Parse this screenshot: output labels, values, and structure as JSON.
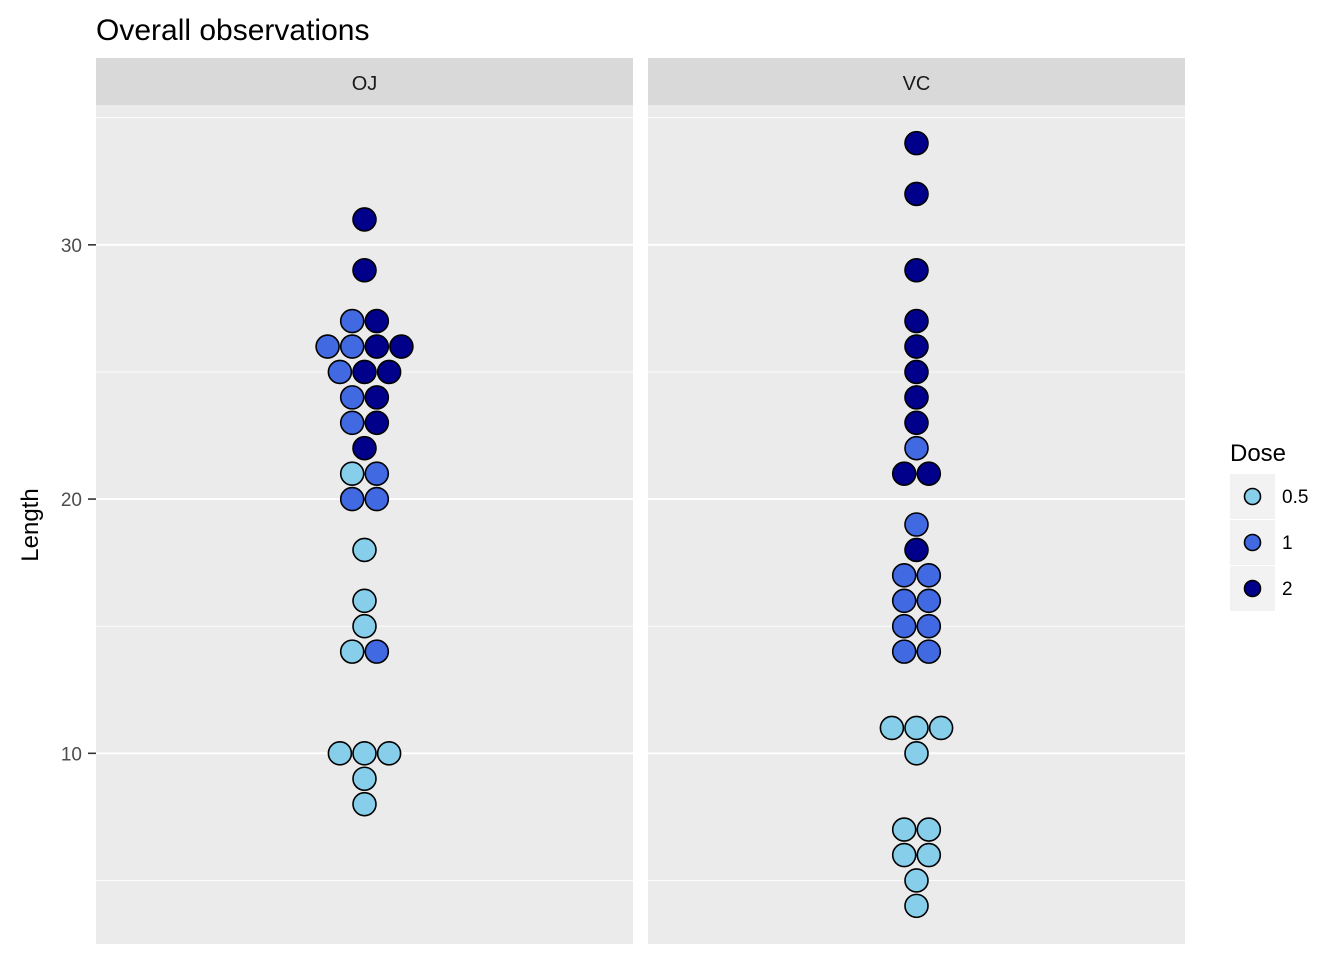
{
  "chart_data": {
    "type": "dotplot",
    "title": "Overall observations",
    "ylabel": "Length",
    "xlabel": "",
    "ylim": [
      2.5,
      35.5
    ],
    "y_ticks": [
      10,
      20,
      30
    ],
    "y_tick_labels": [
      "10",
      "20",
      "30"
    ],
    "grid": true,
    "facets": [
      "OJ",
      "VC"
    ],
    "legend": {
      "title": "Dose",
      "placement": "right",
      "entries": [
        {
          "label": "0.5",
          "color": "#87ceeb"
        },
        {
          "label": "1",
          "color": "#4169e1"
        },
        {
          "label": "2",
          "color": "#00008b"
        }
      ]
    },
    "series": [
      {
        "facet": "OJ",
        "dose": "0.5",
        "values": [
          8,
          9,
          10,
          10,
          10,
          14,
          15,
          16,
          18,
          21
        ]
      },
      {
        "facet": "OJ",
        "dose": "1",
        "values": [
          14,
          20,
          20,
          21,
          23,
          24,
          25,
          26,
          26,
          27
        ]
      },
      {
        "facet": "OJ",
        "dose": "2",
        "values": [
          22,
          23,
          24,
          25,
          25,
          26,
          26,
          27,
          29,
          31
        ]
      },
      {
        "facet": "VC",
        "dose": "0.5",
        "values": [
          4,
          5,
          6,
          6,
          7,
          7,
          10,
          11,
          11,
          11
        ]
      },
      {
        "facet": "VC",
        "dose": "1",
        "values": [
          14,
          14,
          15,
          15,
          16,
          16,
          17,
          17,
          19,
          22
        ]
      },
      {
        "facet": "VC",
        "dose": "2",
        "values": [
          18,
          21,
          21,
          23,
          24,
          25,
          26,
          27,
          29,
          32,
          34
        ]
      }
    ]
  }
}
